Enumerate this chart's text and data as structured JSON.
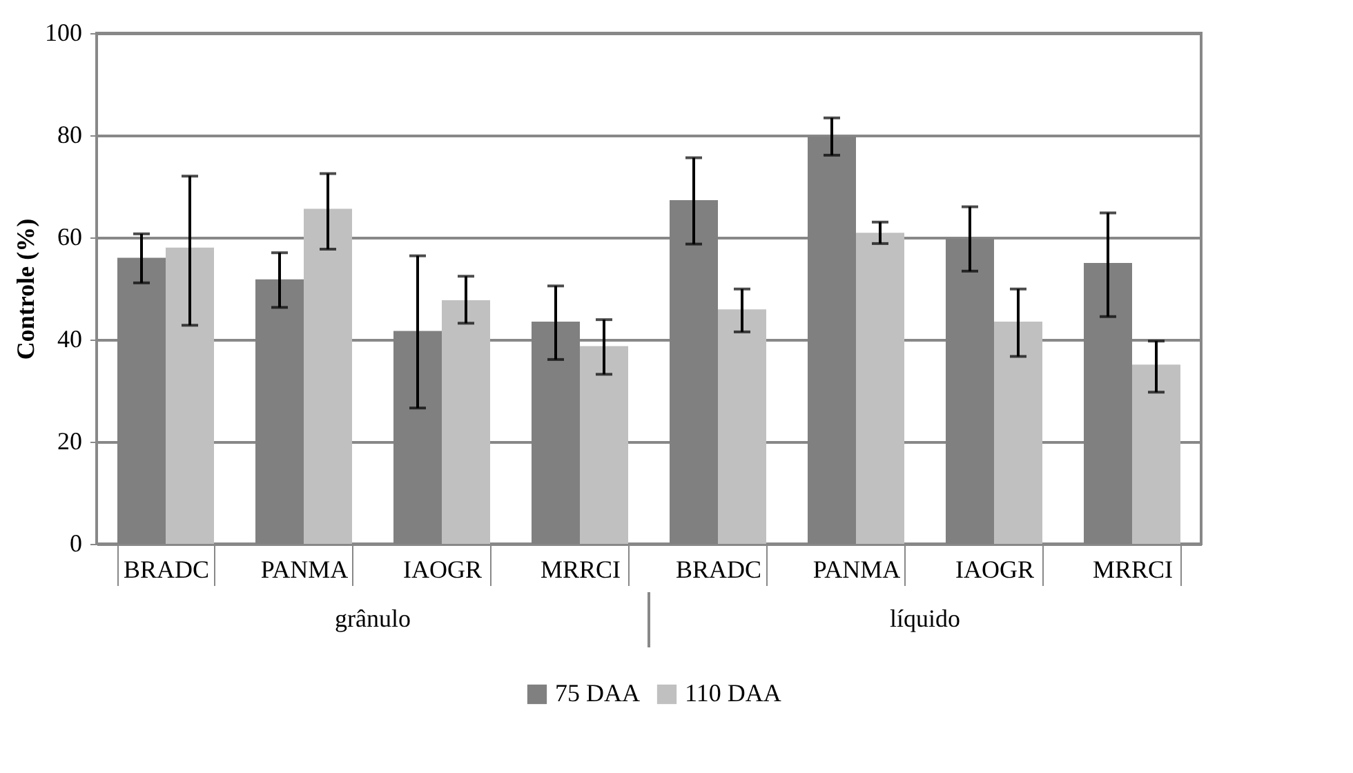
{
  "chart_data": {
    "type": "bar",
    "ylabel": "Controle (%)",
    "categories": [
      "BRADC",
      "PANMA",
      "IAOGR",
      "MRRCI",
      "BRADC",
      "PANMA",
      "IAOGR",
      "MRRCI"
    ],
    "annotations": [
      "grânulo",
      "líquido"
    ],
    "series": [
      {
        "name": "75 DAA",
        "color": "#808080",
        "values": [
          56,
          51.8,
          41.7,
          43.5,
          67.3,
          79.8,
          59.8,
          55
        ],
        "errors": [
          [
            51.1,
            60.7
          ],
          [
            46.3,
            57
          ],
          [
            26.6,
            56.4
          ],
          [
            36.1,
            50.5
          ],
          [
            58.7,
            75.6
          ],
          [
            76.1,
            83.4
          ],
          [
            53.4,
            66
          ],
          [
            44.5,
            64.8
          ]
        ]
      },
      {
        "name": "110 DAA",
        "color": "#c0c0c0",
        "values": [
          58,
          65.6,
          47.7,
          38.7,
          45.9,
          60.9,
          43.5,
          35.1
        ],
        "errors": [
          [
            42.8,
            72
          ],
          [
            57.7,
            72.5
          ],
          [
            43.2,
            52.4
          ],
          [
            33.2,
            43.9
          ],
          [
            41.5,
            49.9
          ],
          [
            58.8,
            63
          ],
          [
            36.7,
            49.9
          ],
          [
            29.7,
            39.7
          ]
        ]
      }
    ],
    "ylim": [
      0,
      100
    ],
    "yticks": [
      0,
      20,
      40,
      60,
      80,
      100
    ],
    "grid": "y",
    "legend": "bottom"
  }
}
